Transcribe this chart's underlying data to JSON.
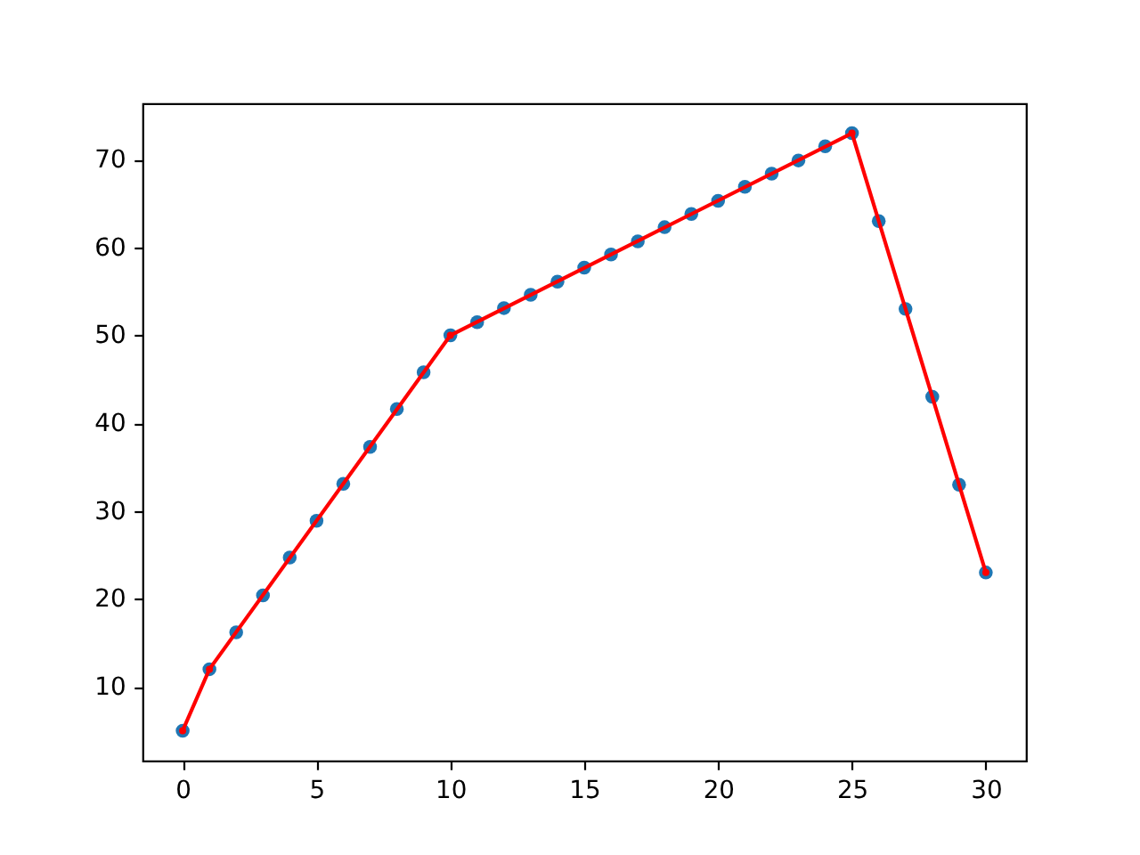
{
  "chart_data": {
    "type": "scatter",
    "xlim": [
      -1.5,
      31.5
    ],
    "xticks": [
      0,
      5,
      10,
      15,
      20,
      25,
      30
    ],
    "ylim": [
      1.6,
      76.4
    ],
    "yticks": [
      10,
      20,
      30,
      40,
      50,
      60,
      70
    ],
    "grid": false,
    "marker": "circle",
    "series": [
      {
        "color": "#1f77b4",
        "x": [
          0,
          1,
          2,
          3,
          4,
          5,
          6,
          7,
          8,
          9,
          10,
          11,
          12,
          13,
          14,
          15,
          16,
          17,
          18,
          19,
          20,
          21,
          22,
          23,
          24,
          25,
          26,
          27,
          28,
          29,
          30
        ],
        "values": [
          5,
          12,
          16.2,
          20.4,
          24.7,
          28.9,
          33.1,
          37.3,
          41.6,
          45.8,
          50,
          51.5,
          53.1,
          54.6,
          56.1,
          57.7,
          59.2,
          60.7,
          62.3,
          63.8,
          65.3,
          66.9,
          68.4,
          69.9,
          71.5,
          73,
          63,
          53,
          43,
          33,
          23
        ]
      },
      {
        "type": "line",
        "color": "#ff0000",
        "line_style": "solid",
        "marker": "circle",
        "x": [
          0,
          1,
          10,
          25,
          30
        ],
        "values": [
          5,
          12,
          50,
          73,
          23
        ]
      }
    ]
  }
}
